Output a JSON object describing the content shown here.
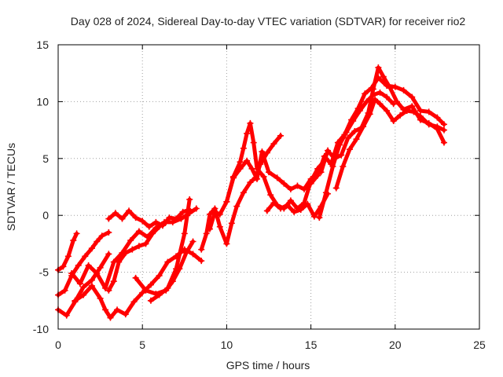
{
  "chart_data": {
    "type": "scatter",
    "title": "Day 028 of 2024, Sidereal Day-to-day VTEC variation (SDTVAR) for receiver rio2",
    "xlabel": "GPS time / hours",
    "ylabel": "SDTVAR / TECUs",
    "xlim": [
      0,
      25
    ],
    "ylim": [
      -10,
      15
    ],
    "xticks": [
      0,
      5,
      10,
      15,
      20,
      25
    ],
    "yticks": [
      -10,
      -5,
      0,
      5,
      10,
      15
    ],
    "xtick_labels": [
      "0",
      "5",
      "10",
      "15",
      "20",
      "25"
    ],
    "ytick_labels": [
      "-10",
      "-5",
      "0",
      "5",
      "10",
      "15"
    ],
    "grid": true,
    "marker": "+",
    "color": "#ff0000",
    "series": [
      {
        "name": "arc-1",
        "x": [
          0.0,
          0.3,
          0.6,
          0.9,
          1.1
        ],
        "y": [
          -4.8,
          -4.5,
          -3.6,
          -2.2,
          -1.6
        ]
      },
      {
        "name": "arc-2",
        "x": [
          0.0,
          0.4,
          0.8,
          1.2,
          1.6,
          2.0,
          2.3,
          2.6,
          3.0
        ],
        "y": [
          -7.0,
          -6.6,
          -5.3,
          -4.4,
          -3.6,
          -2.9,
          -2.3,
          -1.8,
          -1.5
        ]
      },
      {
        "name": "arc-3",
        "x": [
          0.0,
          0.5,
          1.0,
          1.5,
          2.0,
          2.5,
          3.0
        ],
        "y": [
          -8.3,
          -8.8,
          -7.6,
          -6.3,
          -5.7,
          -4.6,
          -3.4
        ]
      },
      {
        "name": "arc-4",
        "x": [
          1.0,
          1.5,
          2.0,
          2.5,
          2.8,
          3.1,
          3.5,
          4.0,
          4.5,
          5.0,
          5.5,
          6.0,
          6.5,
          7.0,
          7.5,
          8.0,
          8.5
        ],
        "y": [
          -7.5,
          -7.0,
          -6.2,
          -7.3,
          -8.3,
          -9.0,
          -8.3,
          -8.7,
          -7.6,
          -6.8,
          -6.1,
          -5.3,
          -4.1,
          -3.6,
          -3.0,
          -3.4,
          -4.0
        ]
      },
      {
        "name": "arc-5",
        "x": [
          0.8,
          1.3,
          1.8,
          2.3,
          2.8,
          3.3,
          3.8,
          4.3,
          4.8,
          5.3,
          5.8,
          6.3,
          6.8,
          7.3,
          7.8,
          8.2
        ],
        "y": [
          -5.1,
          -6.0,
          -4.4,
          -5.1,
          -6.4,
          -4.1,
          -3.3,
          -2.2,
          -1.4,
          -1.9,
          -1.1,
          -0.6,
          -0.6,
          -0.3,
          0.2,
          0.6
        ]
      },
      {
        "name": "arc-6",
        "x": [
          3.0,
          3.3,
          3.6,
          4.0,
          4.4,
          4.8,
          5.2,
          5.6,
          6.0,
          6.4
        ],
        "y": [
          -6.6,
          -5.8,
          -4.1,
          -3.3,
          -3.0,
          -2.7,
          -2.5,
          -1.6,
          -1.0,
          -0.6
        ]
      },
      {
        "name": "arc-7",
        "x": [
          3.0,
          3.4,
          3.8,
          4.2,
          4.6,
          5.0,
          5.4,
          5.8,
          6.2,
          6.6,
          7.0,
          7.4,
          7.8
        ],
        "y": [
          -0.3,
          0.2,
          -0.3,
          0.4,
          -0.2,
          -0.5,
          -1.0,
          -0.6,
          -0.9,
          -0.2,
          -0.3,
          0.3,
          0.5
        ]
      },
      {
        "name": "arc-8",
        "x": [
          4.6,
          5.2,
          5.8,
          6.4,
          6.8,
          7.2,
          7.6,
          8.0
        ],
        "y": [
          -5.5,
          -6.6,
          -6.9,
          -6.6,
          -5.8,
          -4.7,
          -3.3,
          -2.3
        ]
      },
      {
        "name": "arc-9",
        "x": [
          5.5,
          6.0,
          6.5,
          7.0,
          7.5,
          7.8
        ],
        "y": [
          -7.5,
          -7.0,
          -6.4,
          -4.7,
          -1.6,
          1.4
        ]
      },
      {
        "name": "arc-10",
        "x": [
          8.5,
          8.8,
          9.0,
          9.3,
          9.6,
          10.0,
          10.3,
          10.6,
          11.0,
          11.4,
          11.7,
          12.0,
          12.4,
          12.8,
          13.2
        ],
        "y": [
          -3.0,
          -1.6,
          0.1,
          0.6,
          -1.0,
          -2.5,
          -0.7,
          0.8,
          2.0,
          2.9,
          3.3,
          4.5,
          5.5,
          6.3,
          7.0
        ]
      },
      {
        "name": "arc-11",
        "x": [
          9.0,
          9.3,
          9.6,
          10.0,
          10.4,
          10.8,
          11.2,
          11.5,
          11.8,
          12.1,
          12.5,
          13.0,
          13.4,
          13.8,
          14.2,
          14.6,
          15.0
        ],
        "y": [
          -1.2,
          0.3,
          0.1,
          1.2,
          3.3,
          4.1,
          4.8,
          4.1,
          3.2,
          5.6,
          3.8,
          3.3,
          2.8,
          2.3,
          2.6,
          2.3,
          3.2
        ]
      },
      {
        "name": "arc-12",
        "x": [
          10.0,
          10.4,
          10.8,
          11.0,
          11.2,
          11.4,
          11.6,
          11.8,
          12.2,
          12.6,
          13.0,
          13.4,
          13.8,
          14.2,
          14.6,
          15.0,
          15.4,
          15.8
        ],
        "y": [
          1.2,
          3.4,
          4.7,
          5.9,
          7.2,
          8.1,
          6.4,
          4.1,
          3.4,
          1.8,
          0.9,
          0.6,
          1.3,
          0.6,
          1.1,
          3.0,
          4.1,
          4.8
        ]
      },
      {
        "name": "arc-13",
        "x": [
          12.4,
          12.8,
          13.2,
          13.6,
          14.0,
          14.4,
          14.8,
          15.2,
          15.6,
          16.0
        ],
        "y": [
          0.4,
          1.1,
          0.6,
          0.9,
          0.3,
          0.5,
          1.0,
          -0.1,
          0.8,
          1.9
        ]
      },
      {
        "name": "arc-14",
        "x": [
          15.0,
          15.4,
          15.8,
          16.2,
          16.6,
          17.0,
          17.4,
          17.8,
          18.2,
          18.6,
          19.0,
          19.5,
          20.0,
          20.5,
          21.0,
          21.5,
          22.0,
          22.5,
          22.9
        ],
        "y": [
          2.8,
          3.5,
          5.2,
          4.5,
          6.4,
          7.1,
          8.4,
          9.4,
          10.7,
          11.2,
          12.1,
          11.4,
          11.3,
          11.0,
          10.4,
          9.2,
          9.1,
          8.6,
          8.0
        ]
      },
      {
        "name": "arc-15",
        "x": [
          15.6,
          16.0,
          16.4,
          16.8,
          17.2,
          17.6,
          18.0,
          18.4,
          18.7,
          19.0,
          19.3,
          19.7,
          20.1,
          20.5,
          21.0,
          21.5,
          22.0,
          22.5,
          22.9
        ],
        "y": [
          3.8,
          5.7,
          5.0,
          5.3,
          6.8,
          7.4,
          7.7,
          9.0,
          11.1,
          13.0,
          12.2,
          11.2,
          10.0,
          9.3,
          9.6,
          8.4,
          8.1,
          7.6,
          6.4
        ]
      },
      {
        "name": "arc-16",
        "x": [
          16.5,
          16.9,
          17.3,
          17.7,
          18.1,
          18.5,
          18.8,
          19.1,
          19.5,
          19.9,
          20.3,
          20.7,
          21.1,
          21.5,
          22.0,
          22.5,
          22.9
        ],
        "y": [
          2.4,
          4.3,
          5.8,
          6.7,
          7.8,
          8.9,
          10.2,
          9.8,
          9.2,
          8.3,
          8.8,
          9.2,
          9.1,
          8.7,
          8.0,
          7.8,
          7.5
        ]
      },
      {
        "name": "arc-17",
        "x": [
          15.5,
          15.9,
          16.3,
          16.7,
          17.1,
          17.5,
          17.9,
          18.3,
          18.7,
          19.1,
          19.5,
          19.9
        ],
        "y": [
          -0.2,
          2.0,
          4.3,
          6.2,
          7.3,
          8.3,
          9.2,
          10.0,
          10.6,
          10.8,
          10.4,
          9.8
        ]
      }
    ]
  }
}
